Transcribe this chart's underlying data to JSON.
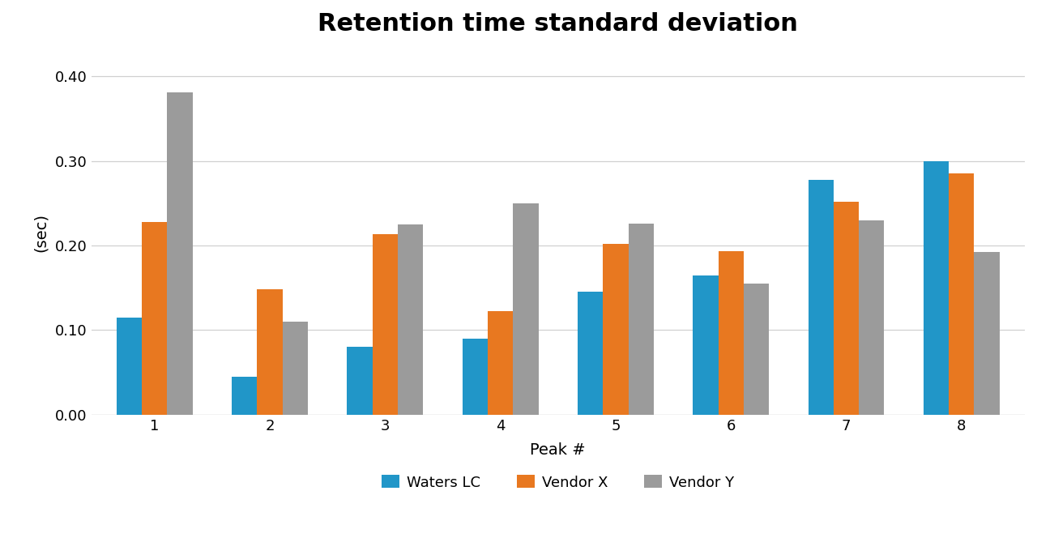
{
  "title": "Retention time standard deviation",
  "xlabel": "Peak #",
  "ylabel": "(sec)",
  "peaks": [
    1,
    2,
    3,
    4,
    5,
    6,
    7,
    8
  ],
  "waters_lc": [
    0.115,
    0.045,
    0.08,
    0.09,
    0.145,
    0.165,
    0.278,
    0.3
  ],
  "vendor_x": [
    0.228,
    0.148,
    0.213,
    0.122,
    0.202,
    0.193,
    0.252,
    0.285
  ],
  "vendor_y": [
    0.381,
    0.11,
    0.225,
    0.25,
    0.226,
    0.155,
    0.23,
    0.192
  ],
  "colors": {
    "waters_lc": "#2196c8",
    "vendor_x": "#e87820",
    "vendor_y": "#9b9b9b"
  },
  "legend_labels": [
    "Waters LC",
    "Vendor X",
    "Vendor Y"
  ],
  "ylim": [
    0,
    0.43
  ],
  "yticks": [
    0.0,
    0.1,
    0.2,
    0.3,
    0.4
  ],
  "ytick_labels": [
    "0.00",
    "0.10",
    "0.20",
    "0.30",
    "0.40"
  ],
  "title_fontsize": 22,
  "axis_label_fontsize": 14,
  "tick_fontsize": 13,
  "legend_fontsize": 13,
  "bar_width": 0.22,
  "background_color": "#ffffff",
  "grid_color": "#d0d0d0"
}
